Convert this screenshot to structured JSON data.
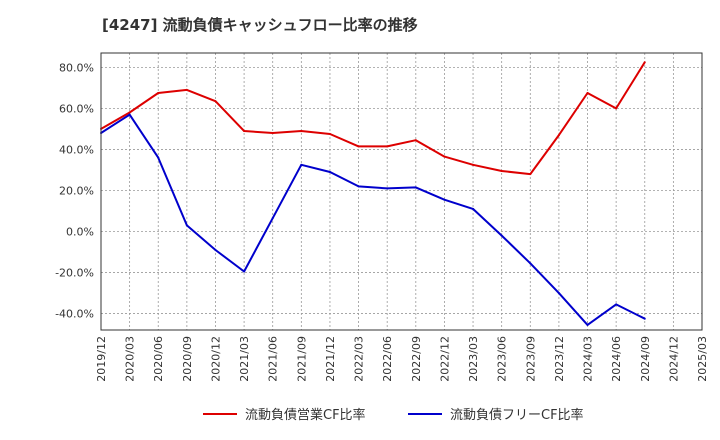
{
  "chart_data": {
    "type": "line",
    "title": "[4247]  流動負債キャッシュフロー比率の推移",
    "xlabel": "",
    "ylabel": "",
    "x": [
      "2019/12",
      "2020/03",
      "2020/06",
      "2020/09",
      "2020/12",
      "2021/03",
      "2021/06",
      "2021/09",
      "2021/12",
      "2022/03",
      "2022/06",
      "2022/09",
      "2022/12",
      "2023/03",
      "2023/06",
      "2023/09",
      "2023/12",
      "2024/03",
      "2024/06",
      "2024/09",
      "2024/12",
      "2025/03"
    ],
    "ylim": [
      -48,
      87
    ],
    "yticks": [
      80,
      60,
      40,
      20,
      0,
      -20,
      -40
    ],
    "ytick_labels": [
      "80.0%",
      "60.0%",
      "40.0%",
      "20.0%",
      "0.0%",
      "-20.0%",
      "-40.0%"
    ],
    "grid": true,
    "legend_position": "bottom",
    "series": [
      {
        "name": "流動負債営業CF比率",
        "color": "#dd0000",
        "values": [
          50,
          58,
          67.5,
          69,
          63.5,
          49,
          48,
          49,
          47.5,
          41.5,
          41.5,
          44.5,
          36.5,
          32.5,
          29.5,
          28,
          47,
          67.5,
          60,
          82.5,
          null,
          null
        ]
      },
      {
        "name": "流動負債フリーCF比率",
        "color": "#0000cc",
        "values": [
          48,
          57,
          36,
          3,
          -9,
          -19.5,
          6.5,
          32.5,
          29,
          22,
          21,
          21.5,
          15.5,
          11,
          -2,
          -15.5,
          -30,
          -45.5,
          -35.5,
          -42.5,
          null,
          null
        ]
      }
    ]
  }
}
